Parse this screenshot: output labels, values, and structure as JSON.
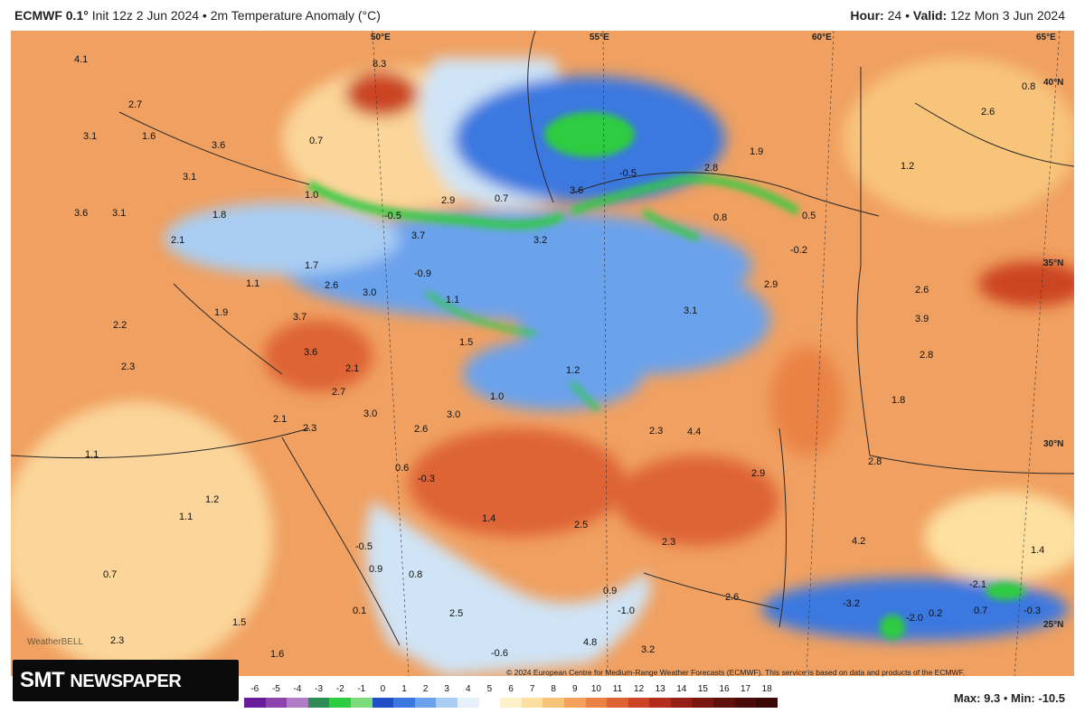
{
  "header": {
    "brand": "ECMWF 0.1°",
    "init": "Init 12z 2 Jun 2024",
    "bullet": "•",
    "title": "2m Temperature Anomaly (°C)",
    "hour_label": "Hour:",
    "hour_value": "24",
    "valid_label": "Valid:",
    "valid_value": "12z Mon 3 Jun 2024"
  },
  "colors": {
    "map_background": "#f0a060",
    "warm_deep": "#c8401c",
    "cold_blue": "#3a78e0",
    "cold_light": "#a9cdf3",
    "green": "#2ecc40",
    "sea": "#cfe4f6"
  },
  "grid_labels": {
    "lon_50": "50°E",
    "lon_55": "55°E",
    "lon_60": "60°E",
    "lon_65": "65°E",
    "lat_40": "40°N",
    "lat_35": "35°N",
    "lat_30": "30°N",
    "lat_25": "25°N"
  },
  "values": [
    {
      "t": "4.1"
    },
    {
      "t": "8.3"
    },
    {
      "t": "2.7"
    },
    {
      "t": "3.1"
    },
    {
      "t": "1.6"
    },
    {
      "t": "3.6"
    },
    {
      "t": "0.7"
    },
    {
      "t": "3.1"
    },
    {
      "t": "3.6"
    },
    {
      "t": "3.1"
    },
    {
      "t": "1.0"
    },
    {
      "t": "-0.5"
    },
    {
      "t": "1.8"
    },
    {
      "t": "2.1"
    },
    {
      "t": "2.9"
    },
    {
      "t": "0.7"
    },
    {
      "t": "3.6"
    },
    {
      "t": "3.7"
    },
    {
      "t": "3.2"
    },
    {
      "t": "-0.5"
    },
    {
      "t": "2.8"
    },
    {
      "t": "1.9"
    },
    {
      "t": "0.8"
    },
    {
      "t": "0.5"
    },
    {
      "t": "-0.2"
    },
    {
      "t": "1.2"
    },
    {
      "t": "2.6"
    },
    {
      "t": "0.8"
    },
    {
      "t": "1.7"
    },
    {
      "t": "1.1"
    },
    {
      "t": "2.6"
    },
    {
      "t": "3.0"
    },
    {
      "t": "-0.9"
    },
    {
      "t": "1.1"
    },
    {
      "t": "2.9"
    },
    {
      "t": "1.9"
    },
    {
      "t": "3.7"
    },
    {
      "t": "2.2"
    },
    {
      "t": "3.1"
    },
    {
      "t": "2.6"
    },
    {
      "t": "3.9"
    },
    {
      "t": "1.5"
    },
    {
      "t": "3.6"
    },
    {
      "t": "2.1"
    },
    {
      "t": "2.3"
    },
    {
      "t": "1.2"
    },
    {
      "t": "2.8"
    },
    {
      "t": "2.7"
    },
    {
      "t": "1.0"
    },
    {
      "t": "1.8"
    },
    {
      "t": "3.0"
    },
    {
      "t": "3.0"
    },
    {
      "t": "2.1"
    },
    {
      "t": "2.3"
    },
    {
      "t": "2.6"
    },
    {
      "t": "2.3"
    },
    {
      "t": "4.4"
    },
    {
      "t": "1.1"
    },
    {
      "t": "0.6"
    },
    {
      "t": "-0.3"
    },
    {
      "t": "2.9"
    },
    {
      "t": "2.8"
    },
    {
      "t": "1.2"
    },
    {
      "t": "1.1"
    },
    {
      "t": "1.4"
    },
    {
      "t": "2.5"
    },
    {
      "t": "4.2"
    },
    {
      "t": "-0.5"
    },
    {
      "t": "2.3"
    },
    {
      "t": "1.4"
    },
    {
      "t": "0.7"
    },
    {
      "t": "0.9"
    },
    {
      "t": "0.8"
    },
    {
      "t": "0.9"
    },
    {
      "t": "2.6"
    },
    {
      "t": "-3.2"
    },
    {
      "t": "-2.1"
    },
    {
      "t": "0.1"
    },
    {
      "t": "1.5"
    },
    {
      "t": "2.5"
    },
    {
      "t": "-1.0"
    },
    {
      "t": "-2.0"
    },
    {
      "t": "0.2"
    },
    {
      "t": "0.7"
    },
    {
      "t": "-0.3"
    },
    {
      "t": "2.3"
    },
    {
      "t": "1.6"
    },
    {
      "t": "-0.6"
    },
    {
      "t": "3.2"
    },
    {
      "t": "4.8"
    }
  ],
  "colorbar": {
    "ticks": [
      "-6",
      "-5",
      "-4",
      "-3",
      "-2",
      "-1",
      "0",
      "1",
      "2",
      "3",
      "4",
      "5",
      "6",
      "7",
      "8",
      "9",
      "10",
      "11",
      "12",
      "13",
      "14",
      "15",
      "16",
      "17",
      "18"
    ],
    "colors": [
      "#6a1b9a",
      "#8e44ad",
      "#b07cc6",
      "#2e8b57",
      "#2ecc40",
      "#7cdc7c",
      "#1f4fc4",
      "#3a78e0",
      "#6aa2ec",
      "#a9cdf3",
      "#e7f1fb",
      "#ffffff",
      "#fff2c9",
      "#fde0a0",
      "#f8c47a",
      "#f3a35c",
      "#ea8245",
      "#de6334",
      "#cc4424",
      "#b32d1c",
      "#962016",
      "#7a1710",
      "#5e100b",
      "#4a0c08",
      "#3a0806"
    ]
  },
  "footer": {
    "copyright": "© 2024 European Centre for Medium-Range Weather Forecasts (ECMWF). This service is based on data and products of the ECMWF.",
    "max_label": "Max:",
    "max_value": "9.3",
    "min_label": "Min:",
    "min_value": "-10.5",
    "logo_main": "SMT",
    "logo_sub": "NEWSPAPER",
    "watermark": "WeatherBELL"
  }
}
